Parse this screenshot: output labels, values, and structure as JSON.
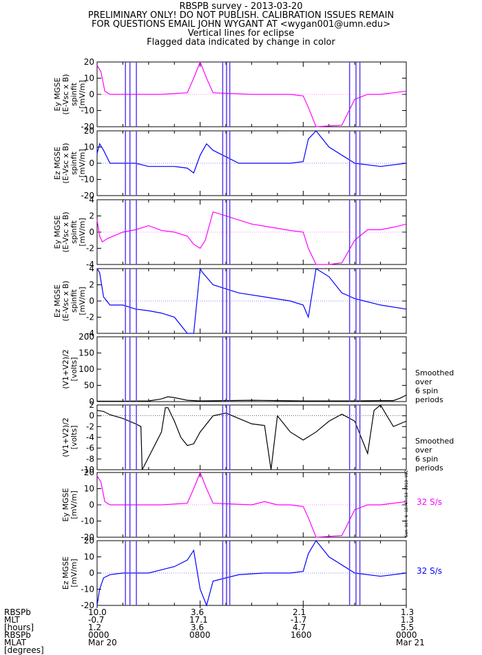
{
  "header": {
    "line1": "RBSPB survey - 2013-03-20",
    "line2": "PRELIMINARY ONLY! DO NOT PUBLISH. CALIBRATION ISSUES REMAIN",
    "line3": "FOR QUESTIONS EMAIL JOHN WYGANT AT <wygan001@umn.edu>",
    "line4": "Vertical lines for eclipse",
    "line5": "Flagged data indicated by change in color"
  },
  "stamp": "Sun Oct  6 18:47:53 2013 V02",
  "colors": {
    "magenta": "#ff00ff",
    "blue": "#0000ff",
    "black": "#000000",
    "eclipse": "#5a3cf0"
  },
  "chart_data": [
    {
      "type": "line",
      "panel": "ey-spinfit-wide",
      "ylabel": [
        "Ey MGSE",
        "(E-Vsc x B)",
        "spinfit",
        "[mV/m]"
      ],
      "ylim": [
        -20,
        20
      ],
      "yticks": [
        20,
        10,
        0,
        -10,
        -20
      ],
      "xlim": [
        0,
        24
      ],
      "color": "magenta",
      "series": [
        {
          "x": [
            0,
            0.3,
            0.6,
            1,
            3,
            5,
            7,
            7.5,
            8,
            8.5,
            9,
            12,
            15,
            16,
            16.4,
            17,
            19,
            20,
            21,
            22,
            23,
            24
          ],
          "values": [
            18,
            14,
            2,
            0,
            0,
            0,
            1,
            10,
            20,
            10,
            1,
            0,
            0,
            -1,
            -8,
            -20,
            -19,
            -3,
            0,
            0,
            1,
            2
          ]
        }
      ],
      "side_label": "",
      "rate_label": ""
    },
    {
      "type": "line",
      "panel": "ez-spinfit-wide",
      "ylabel": [
        "Ez MGSE",
        "(E-Vsc x B)",
        "spinfit",
        "[mV/m]"
      ],
      "ylim": [
        -20,
        20
      ],
      "yticks": [
        20,
        10,
        0,
        -10,
        -20
      ],
      "xlim": [
        0,
        24
      ],
      "color": "blue",
      "series": [
        {
          "x": [
            0,
            0.2,
            0.5,
            1,
            3,
            4,
            5,
            6,
            7,
            7.5,
            8,
            8.5,
            9,
            11,
            13,
            15,
            16,
            16.4,
            17,
            18,
            20,
            22,
            24
          ],
          "values": [
            6,
            12,
            8,
            0,
            0,
            -2,
            -2,
            -2,
            -3,
            -6,
            5,
            12,
            8,
            0,
            0,
            0,
            1,
            15,
            20,
            10,
            0,
            -2,
            0
          ]
        }
      ],
      "side_label": "",
      "rate_label": ""
    },
    {
      "type": "line",
      "panel": "ey-spinfit-zoom",
      "ylabel": [
        "Ey MGSE",
        "(E-Vsc x B)",
        "spinfit",
        "[mV/m]"
      ],
      "ylim": [
        -4,
        4
      ],
      "yticks": [
        4,
        2,
        0,
        -2,
        -4
      ],
      "xlim": [
        0,
        24
      ],
      "color": "magenta",
      "series": [
        {
          "x": [
            0,
            0.2,
            0.4,
            0.8,
            2,
            3,
            4,
            5,
            6,
            7,
            7.5,
            8,
            8.4,
            9,
            12,
            15,
            16,
            16.4,
            17,
            18,
            19,
            20,
            21,
            22,
            23,
            24
          ],
          "values": [
            1.5,
            -0.5,
            -1.2,
            -0.8,
            0,
            0.3,
            0.8,
            0.2,
            0,
            -0.5,
            -1.5,
            -2,
            -1,
            2.5,
            1,
            0.2,
            0,
            -2,
            -4,
            -4,
            -3.8,
            -1,
            0.3,
            0.3,
            0.6,
            1
          ]
        }
      ],
      "side_label": "",
      "rate_label": ""
    },
    {
      "type": "line",
      "panel": "ez-spinfit-zoom",
      "ylabel": [
        "Ez MGSE",
        "(E-Vsc x B)",
        "spinfit",
        "[mV/m]"
      ],
      "ylim": [
        -4,
        4
      ],
      "yticks": [
        4,
        2,
        0,
        -2,
        -4
      ],
      "xlim": [
        0,
        24
      ],
      "color": "blue",
      "series": [
        {
          "x": [
            0,
            0.2,
            0.5,
            1,
            2,
            3,
            4,
            5,
            6,
            7,
            7.5,
            8,
            8.2,
            9,
            11,
            13,
            15,
            16,
            16.4,
            17,
            18,
            19,
            20,
            22,
            24
          ],
          "values": [
            4,
            3.5,
            0.5,
            -0.5,
            -0.5,
            -1,
            -1.2,
            -1.5,
            -2,
            -4,
            -4,
            4,
            3.5,
            2,
            1,
            0.5,
            0,
            -0.5,
            -2,
            4,
            3,
            1,
            0.3,
            -0.5,
            -1
          ]
        }
      ],
      "side_label": "",
      "rate_label": ""
    },
    {
      "type": "line",
      "panel": "vsum-full",
      "ylabel": [
        "(V1+V2)/2",
        "[volts]"
      ],
      "ylim": [
        0,
        200
      ],
      "yticks": [
        200,
        150,
        100,
        50,
        0
      ],
      "xlim": [
        0,
        24
      ],
      "color": "black",
      "series": [
        {
          "x": [
            0,
            2,
            4,
            5,
            5.5,
            6,
            7,
            8,
            10,
            12,
            14,
            16,
            18,
            20,
            22,
            23,
            23.5,
            24
          ],
          "values": [
            1,
            1,
            2,
            8,
            15,
            12,
            4,
            2,
            3,
            4,
            3,
            2,
            2,
            2,
            3,
            3,
            10,
            20
          ]
        }
      ],
      "side_label": "Smoothed\nover\n6 spin\nperiods",
      "rate_label": ""
    },
    {
      "type": "line",
      "panel": "vsum-zoom",
      "ylabel": [
        "(V1+V2)/2",
        "[volts]"
      ],
      "ylim": [
        -10,
        2
      ],
      "yticks": [
        2,
        0,
        -2,
        -4,
        -6,
        -8,
        -10
      ],
      "xlim": [
        0,
        24
      ],
      "color": "black",
      "series": [
        {
          "x": [
            0,
            0.5,
            1,
            2,
            3,
            3.4,
            3.5,
            5,
            5.3,
            5.5,
            6,
            6.5,
            7,
            7.5,
            8,
            9,
            10,
            11,
            12,
            13,
            13.5,
            14,
            15,
            16,
            17,
            18,
            19,
            20,
            20.5,
            21,
            21.5,
            22,
            22.5,
            23,
            24
          ],
          "values": [
            1,
            0.8,
            0.2,
            -0.5,
            -1.5,
            -2,
            -10,
            -3,
            1.5,
            1.5,
            -1,
            -4,
            -5.5,
            -5.2,
            -3,
            0,
            0.5,
            -0.5,
            -1.5,
            -1.8,
            -10,
            0,
            -3,
            -4.5,
            -3,
            -1,
            0.3,
            -1,
            -4,
            -7,
            1,
            2,
            0,
            -2,
            -1
          ]
        }
      ],
      "side_label": "Smoothed\nover\n6 spin\nperiods",
      "rate_label": ""
    },
    {
      "type": "line",
      "panel": "ey-32sps",
      "ylabel": [
        "Ey MGSE",
        "[mV/m]"
      ],
      "ylim": [
        -20,
        20
      ],
      "yticks": [
        20,
        10,
        0,
        -10,
        -20
      ],
      "xlim": [
        0,
        24
      ],
      "color": "magenta",
      "series": [
        {
          "x": [
            0,
            0.3,
            0.6,
            1,
            3,
            5,
            7,
            7.5,
            8,
            8.5,
            9,
            12,
            13,
            14,
            15,
            16,
            16.4,
            17,
            19,
            20,
            21,
            22,
            23,
            24
          ],
          "values": [
            18,
            14,
            2,
            0,
            0,
            0,
            1,
            10,
            20,
            10,
            1,
            0,
            2,
            0,
            0,
            -1,
            -8,
            -20,
            -19,
            -3,
            0,
            0,
            1,
            2
          ]
        }
      ],
      "side_label": "",
      "rate_label": "32 S/s"
    },
    {
      "type": "line",
      "panel": "ez-32sps",
      "ylabel": [
        "Ez MGSE",
        "[mV/m]"
      ],
      "ylim": [
        -20,
        20
      ],
      "yticks": [
        20,
        10,
        0,
        -10,
        -20
      ],
      "xlim": [
        0,
        24
      ],
      "color": "blue",
      "series": [
        {
          "x": [
            0,
            0.2,
            0.5,
            1,
            2,
            3,
            4,
            5,
            6,
            7,
            7.5,
            8,
            8.5,
            9,
            11,
            13,
            15,
            16,
            16.4,
            17,
            18,
            20,
            22,
            24
          ],
          "values": [
            -20,
            -10,
            -3,
            -1,
            0,
            0,
            0,
            2,
            4,
            8,
            14,
            -10,
            -20,
            -5,
            -1,
            0,
            0,
            1,
            12,
            20,
            10,
            0,
            -2,
            0
          ]
        }
      ],
      "side_label": "",
      "rate_label": "32 S/s"
    }
  ],
  "eclipse_hours": [
    2.2,
    2.55,
    3.05,
    9.75,
    10.05,
    10.3,
    19.6,
    20.1,
    20.4
  ],
  "footer": {
    "labels": [
      "RBSPb",
      "MLT",
      "[hours]",
      "RBSPb",
      "MLAT",
      "[degrees]"
    ],
    "columns": [
      {
        "tick_hour": 0,
        "values": [
          "10.0",
          "-0.7",
          "1.2",
          "0000",
          "Mar 20"
        ]
      },
      {
        "tick_hour": 8,
        "values": [
          "3.6",
          "17.1",
          "3.6",
          "0800",
          ""
        ]
      },
      {
        "tick_hour": 16,
        "values": [
          "2.1",
          "-1.7",
          "4.7",
          "1600",
          ""
        ]
      },
      {
        "tick_hour": 24,
        "values": [
          "1.3",
          "1.3",
          "5.5",
          "0000",
          "Mar 21"
        ]
      }
    ]
  }
}
